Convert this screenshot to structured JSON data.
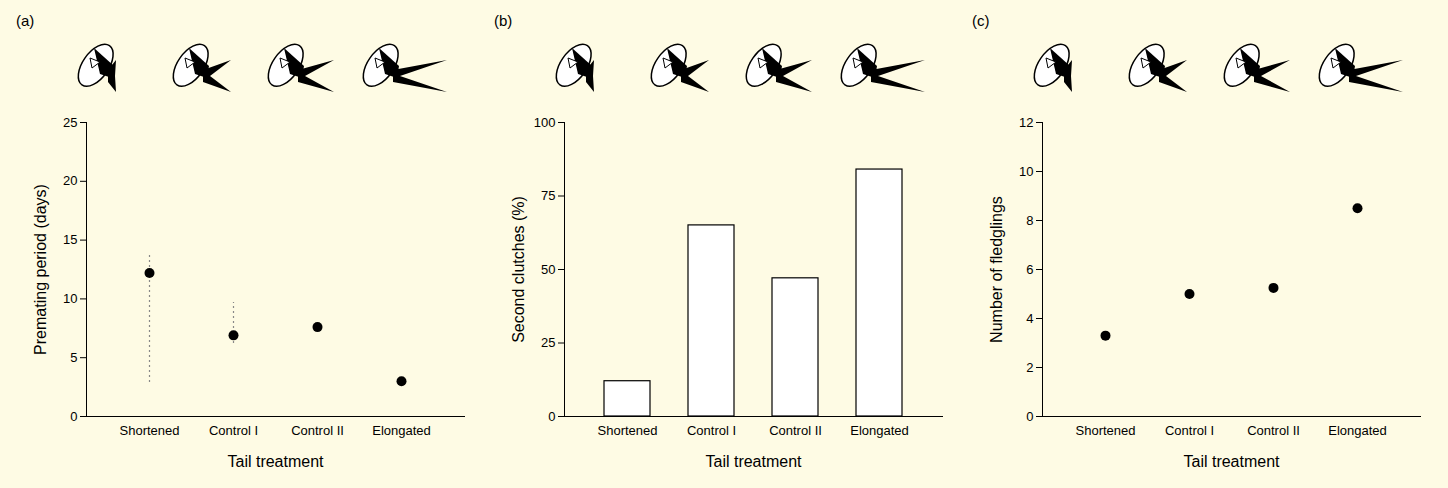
{
  "chart_data": [
    {
      "type": "scatter",
      "title": "(a)",
      "x_label": "Tail treatment",
      "y_label": "Premating period (days)",
      "categories": [
        "Shortened",
        "Control I",
        "Control II",
        "Elongated"
      ],
      "values": [
        12.2,
        6.9,
        7.6,
        3.0
      ],
      "error_low": [
        2.9,
        6.2,
        null,
        null
      ],
      "error_high": [
        13.8,
        9.7,
        null,
        null
      ],
      "color": "#000000",
      "marker": "circle",
      "ylim": [
        0,
        25
      ],
      "yticks": [
        0,
        5,
        10,
        15,
        20,
        25
      ],
      "grid": false
    },
    {
      "type": "bar",
      "title": "(b)",
      "x_label": "Tail treatment",
      "y_label": "Second clutches (%)",
      "categories": [
        "Shortened",
        "Control I",
        "Control II",
        "Elongated"
      ],
      "values": [
        12,
        65,
        47,
        84
      ],
      "color": "#ffffff",
      "ylim": [
        0,
        100
      ],
      "yticks": [
        0,
        25,
        50,
        75,
        100
      ],
      "grid": false
    },
    {
      "type": "scatter",
      "title": "(c)",
      "x_label": "Tail treatment",
      "y_label": "Number of fledglings",
      "categories": [
        "Shortened",
        "Control I",
        "Control II",
        "Elongated"
      ],
      "values": [
        3.3,
        5.0,
        5.25,
        8.5
      ],
      "color": "#000000",
      "marker": "circle",
      "ylim": [
        0,
        12
      ],
      "yticks": [
        0,
        2,
        4,
        6,
        8,
        10,
        12
      ],
      "grid": false
    }
  ]
}
